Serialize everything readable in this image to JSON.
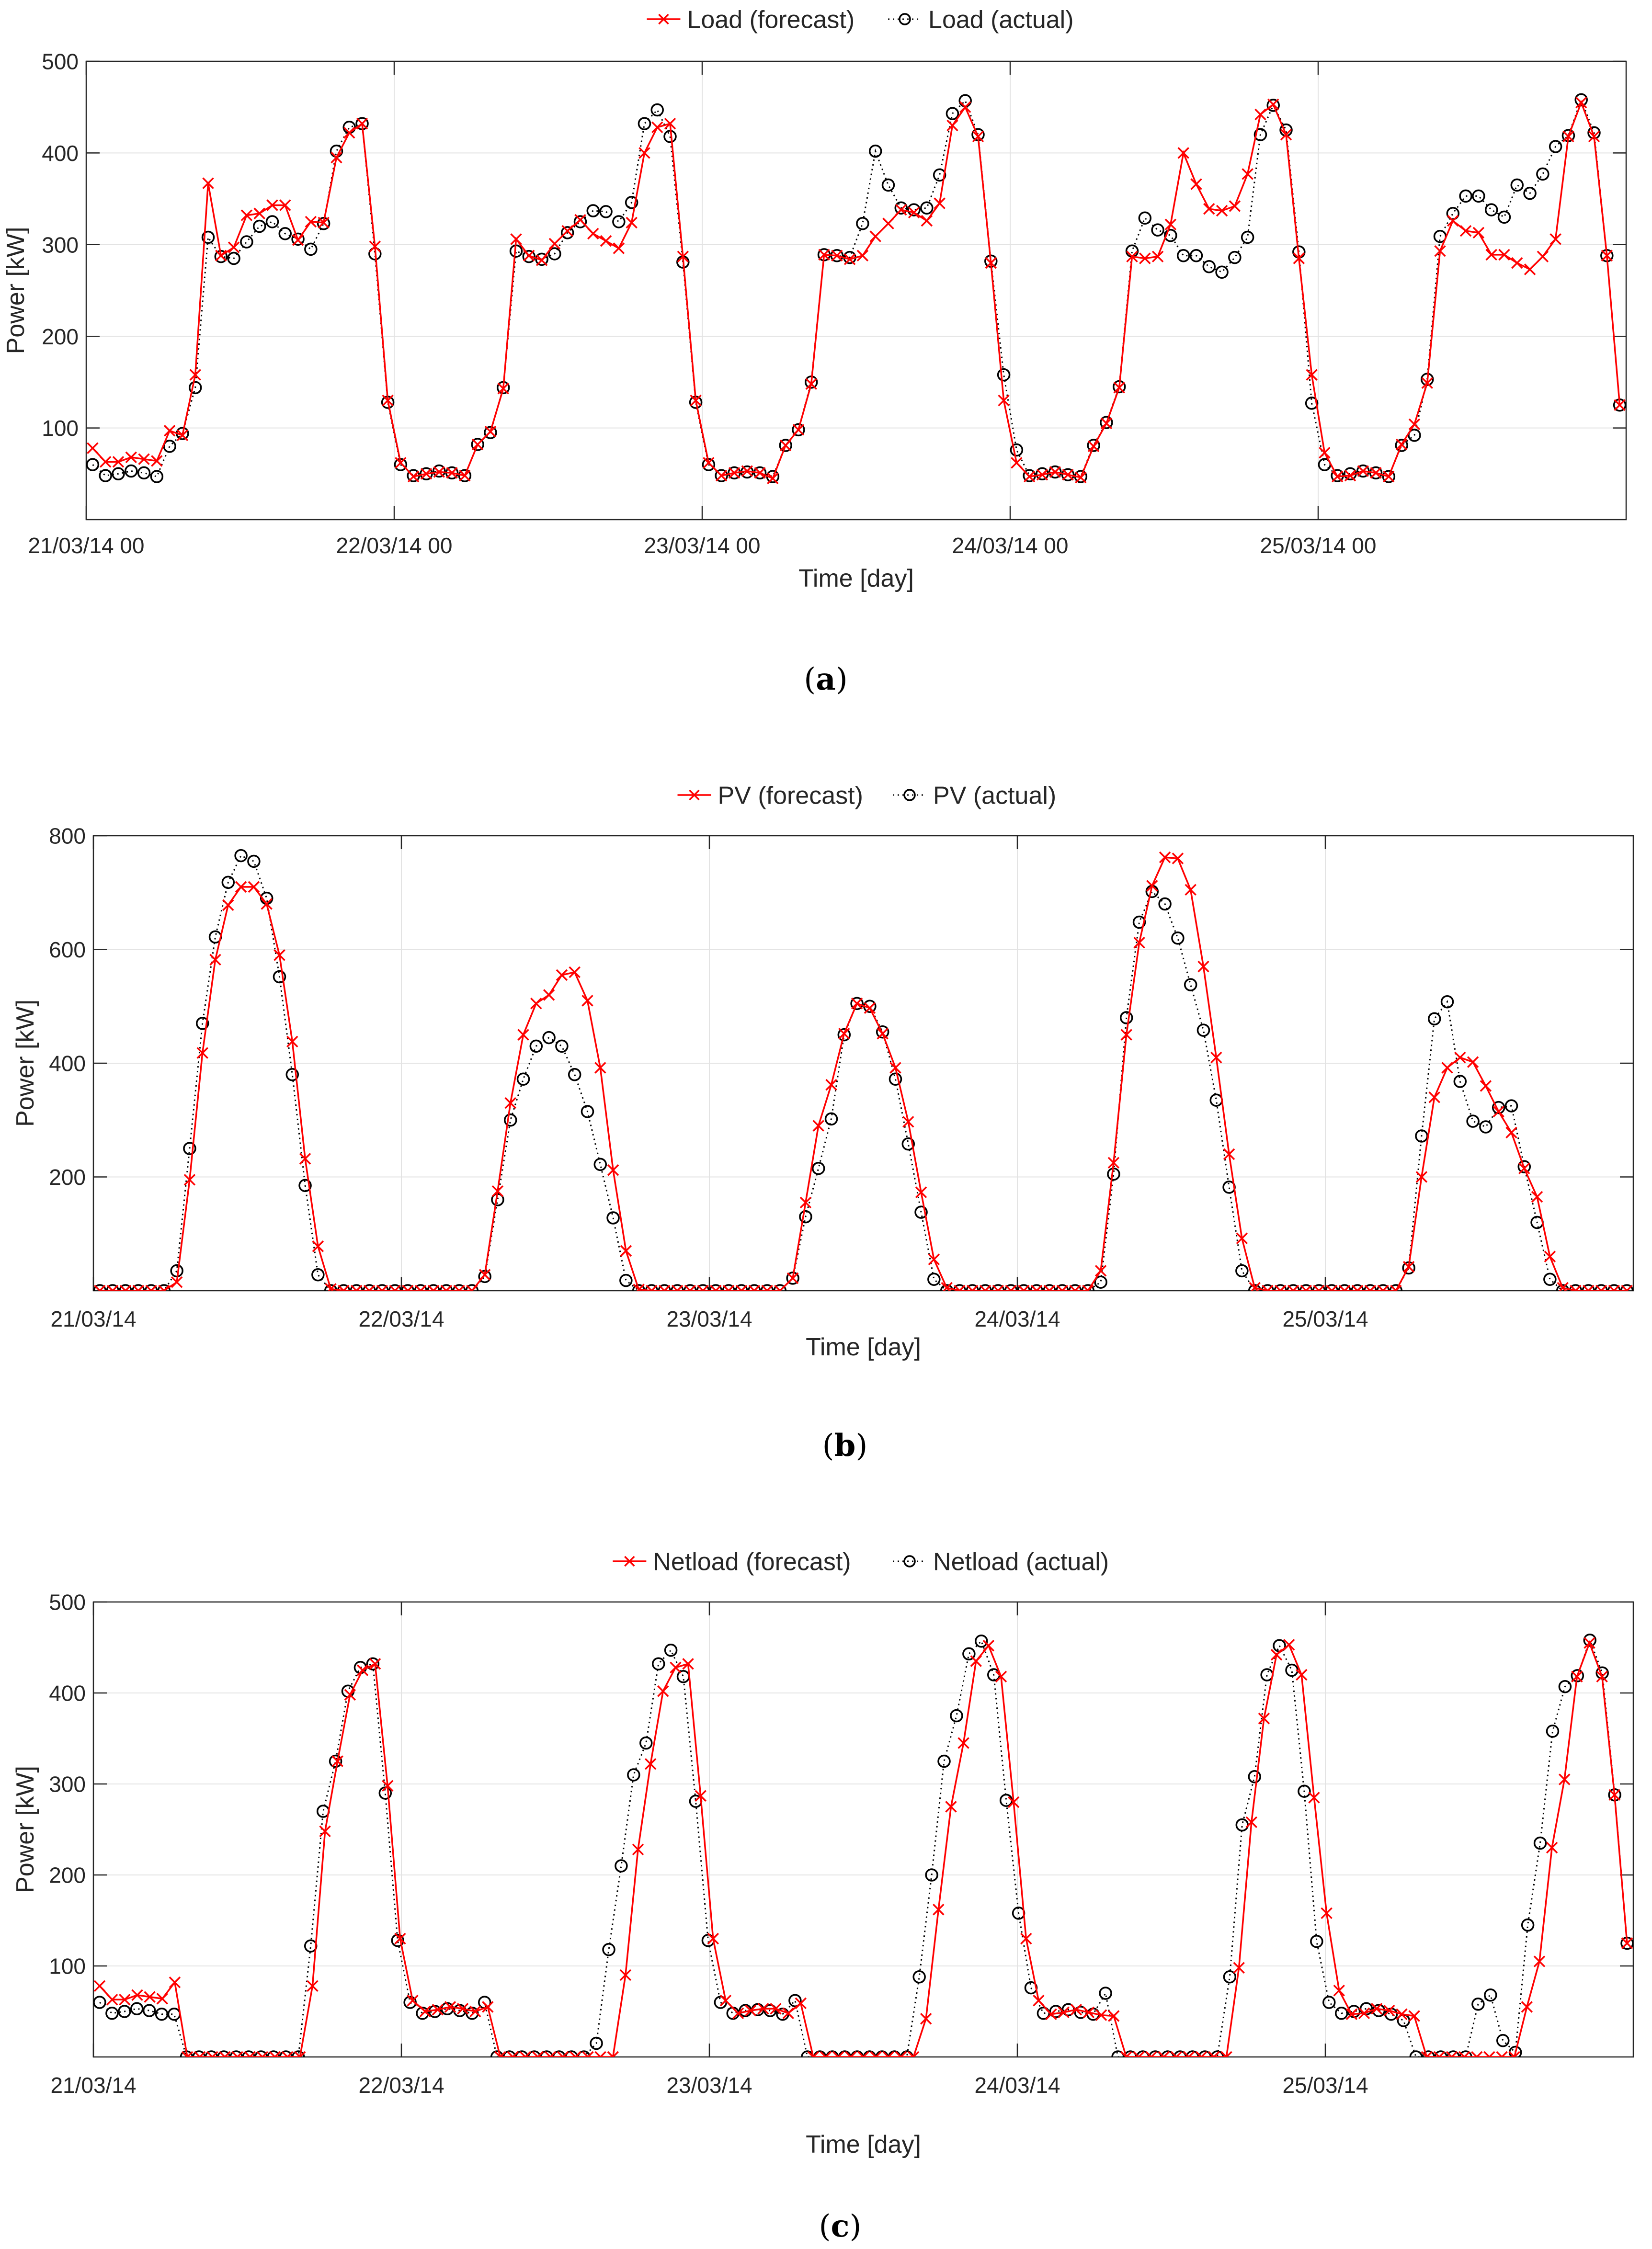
{
  "colors": {
    "forecast": "#ff0000",
    "actual": "#000000",
    "axis": "#262626",
    "grid": "#e3e3e3",
    "background": "#ffffff"
  },
  "chart_data": [
    {
      "id": "a",
      "type": "line",
      "caption_open": "(",
      "caption_letter": "a",
      "caption_close": ")",
      "xlabel": "Time [day]",
      "ylabel": "Power [kW]",
      "ylim": [
        0,
        500
      ],
      "yticks": [
        100,
        200,
        300,
        400,
        500
      ],
      "xlim": [
        0,
        120
      ],
      "xticks": [
        {
          "pos": 0,
          "label": "21/03/14 00"
        },
        {
          "pos": 24,
          "label": "22/03/14 00"
        },
        {
          "pos": 48,
          "label": "23/03/14 00"
        },
        {
          "pos": 72,
          "label": "24/03/14 00"
        },
        {
          "pos": 96,
          "label": "25/03/14 00"
        }
      ],
      "grid": true,
      "legend_position": "top-center",
      "series": [
        {
          "name": "Load (forecast)",
          "style": "solid",
          "marker": "x",
          "color": "#ff0000",
          "values": [
            78,
            63,
            63,
            68,
            66,
            64,
            97,
            92,
            158,
            367,
            288,
            297,
            332,
            334,
            343,
            343,
            305,
            325,
            324,
            395,
            422,
            432,
            298,
            130,
            62,
            47,
            50,
            52,
            51,
            48,
            82,
            96,
            143,
            306,
            288,
            283,
            301,
            315,
            327,
            312,
            304,
            296,
            324,
            400,
            428,
            432,
            287,
            130,
            62,
            48,
            51,
            53,
            51,
            45,
            81,
            98,
            148,
            289,
            288,
            284,
            288,
            309,
            323,
            338,
            335,
            326,
            345,
            430,
            450,
            418,
            280,
            130,
            62,
            47,
            49,
            52,
            49,
            46,
            80,
            105,
            144,
            287,
            285,
            287,
            322,
            400,
            366,
            339,
            337,
            342,
            377,
            442,
            453,
            420,
            285,
            158,
            73,
            47,
            48,
            53,
            51,
            47,
            82,
            104,
            149,
            293,
            326,
            315,
            313,
            289,
            289,
            280,
            273,
            287,
            306,
            418,
            455,
            418,
            288,
            125
          ]
        },
        {
          "name": "Load (actual)",
          "style": "dotted",
          "marker": "o",
          "color": "#000000",
          "values": [
            60,
            48,
            50,
            53,
            51,
            47,
            80,
            94,
            144,
            308,
            287,
            285,
            303,
            320,
            325,
            312,
            306,
            295,
            323,
            402,
            428,
            432,
            290,
            128,
            60,
            48,
            50,
            53,
            51,
            48,
            82,
            95,
            144,
            293,
            287,
            284,
            290,
            313,
            325,
            337,
            336,
            325,
            346,
            432,
            447,
            418,
            281,
            128,
            60,
            48,
            51,
            52,
            51,
            47,
            81,
            98,
            150,
            289,
            288,
            286,
            323,
            402,
            365,
            340,
            338,
            340,
            376,
            443,
            457,
            420,
            282,
            158,
            76,
            48,
            50,
            52,
            49,
            47,
            81,
            106,
            145,
            293,
            329,
            316,
            310,
            288,
            288,
            276,
            270,
            286,
            308,
            420,
            452,
            425,
            292,
            127,
            60,
            48,
            50,
            53,
            51,
            47,
            81,
            92,
            153,
            309,
            334,
            353,
            353,
            338,
            330,
            365,
            356,
            377,
            407,
            419,
            458,
            422,
            288,
            125
          ]
        }
      ]
    },
    {
      "id": "b",
      "type": "line",
      "caption_open": "(",
      "caption_letter": "b",
      "caption_close": ")",
      "xlabel": "Time [day]",
      "ylabel": "Power [kW]",
      "ylim": [
        0,
        800
      ],
      "yticks": [
        200,
        400,
        600,
        800
      ],
      "xlim": [
        0,
        120
      ],
      "xticks": [
        {
          "pos": 0,
          "label": "21/03/14"
        },
        {
          "pos": 24,
          "label": "22/03/14"
        },
        {
          "pos": 48,
          "label": "23/03/14"
        },
        {
          "pos": 72,
          "label": "24/03/14"
        },
        {
          "pos": 96,
          "label": "25/03/14"
        }
      ],
      "grid": true,
      "legend_position": "top-center",
      "series": [
        {
          "name": "PV (forecast)",
          "style": "solid",
          "marker": "x",
          "color": "#ff0000",
          "values": [
            0,
            0,
            0,
            0,
            0,
            0,
            15,
            195,
            418,
            582,
            678,
            710,
            710,
            680,
            590,
            438,
            232,
            78,
            3,
            0,
            0,
            0,
            0,
            0,
            0,
            0,
            0,
            0,
            0,
            0,
            28,
            175,
            330,
            450,
            505,
            520,
            555,
            560,
            510,
            392,
            212,
            70,
            2,
            0,
            0,
            0,
            0,
            0,
            0,
            0,
            0,
            0,
            0,
            0,
            22,
            155,
            290,
            362,
            452,
            505,
            497,
            452,
            392,
            297,
            173,
            55,
            5,
            0,
            0,
            0,
            0,
            0,
            0,
            0,
            0,
            0,
            0,
            0,
            35,
            225,
            450,
            612,
            712,
            762,
            760,
            705,
            570,
            410,
            240,
            92,
            5,
            0,
            0,
            0,
            0,
            0,
            0,
            0,
            0,
            0,
            0,
            0,
            42,
            200,
            340,
            392,
            410,
            402,
            360,
            315,
            278,
            215,
            165,
            60,
            5,
            0,
            0,
            0,
            0,
            0
          ]
        },
        {
          "name": "PV (actual)",
          "style": "dotted",
          "marker": "o",
          "color": "#000000",
          "values": [
            0,
            0,
            0,
            0,
            0,
            0,
            35,
            250,
            470,
            622,
            718,
            765,
            755,
            690,
            552,
            380,
            185,
            28,
            0,
            0,
            0,
            0,
            0,
            0,
            0,
            0,
            0,
            0,
            0,
            0,
            25,
            160,
            300,
            372,
            430,
            445,
            430,
            380,
            315,
            222,
            128,
            18,
            0,
            0,
            0,
            0,
            0,
            0,
            0,
            0,
            0,
            0,
            0,
            0,
            22,
            130,
            215,
            302,
            450,
            505,
            500,
            455,
            372,
            258,
            138,
            20,
            0,
            0,
            0,
            0,
            0,
            0,
            0,
            0,
            0,
            0,
            0,
            0,
            15,
            205,
            480,
            648,
            702,
            680,
            620,
            538,
            458,
            335,
            182,
            35,
            0,
            0,
            0,
            0,
            0,
            0,
            0,
            0,
            0,
            0,
            0,
            0,
            40,
            272,
            478,
            508,
            368,
            298,
            288,
            322,
            325,
            218,
            120,
            20,
            0,
            0,
            0,
            0,
            0,
            0
          ]
        }
      ]
    },
    {
      "id": "c",
      "type": "line",
      "caption_open": "(",
      "caption_letter": "c",
      "caption_close": ")",
      "xlabel": "Time [day]",
      "ylabel": "Power [kW]",
      "ylim": [
        0,
        500
      ],
      "yticks": [
        100,
        200,
        300,
        400,
        500
      ],
      "xlim": [
        0,
        120
      ],
      "xticks": [
        {
          "pos": 0,
          "label": "21/03/14"
        },
        {
          "pos": 24,
          "label": "22/03/14"
        },
        {
          "pos": 48,
          "label": "23/03/14"
        },
        {
          "pos": 72,
          "label": "24/03/14"
        },
        {
          "pos": 96,
          "label": "25/03/14"
        }
      ],
      "grid": true,
      "legend_position": "top-center",
      "series": [
        {
          "name": "Netload (forecast)",
          "style": "solid",
          "marker": "x",
          "color": "#ff0000",
          "values": [
            78,
            63,
            63,
            68,
            66,
            64,
            82,
            0,
            0,
            0,
            0,
            0,
            0,
            0,
            0,
            0,
            0,
            78,
            248,
            325,
            398,
            425,
            432,
            298,
            130,
            62,
            50,
            52,
            55,
            53,
            50,
            55,
            0,
            0,
            0,
            0,
            0,
            0,
            0,
            0,
            0,
            0,
            90,
            228,
            322,
            402,
            428,
            432,
            287,
            130,
            62,
            48,
            51,
            53,
            53,
            48,
            59,
            0,
            0,
            0,
            0,
            0,
            0,
            0,
            0,
            0,
            42,
            162,
            275,
            345,
            435,
            452,
            418,
            280,
            130,
            62,
            47,
            49,
            52,
            49,
            46,
            45,
            0,
            0,
            0,
            0,
            0,
            0,
            0,
            0,
            0,
            98,
            258,
            372,
            442,
            453,
            420,
            285,
            158,
            73,
            47,
            48,
            53,
            51,
            47,
            45,
            0,
            0,
            0,
            0,
            0,
            0,
            0,
            0,
            55,
            105,
            230,
            305,
            418,
            455,
            418,
            288,
            125
          ]
        },
        {
          "name": "Netload (actual)",
          "style": "dotted",
          "marker": "o",
          "color": "#000000",
          "values": [
            60,
            48,
            50,
            53,
            51,
            47,
            47,
            0,
            0,
            0,
            0,
            0,
            0,
            0,
            0,
            0,
            0,
            122,
            270,
            325,
            402,
            428,
            432,
            290,
            128,
            60,
            48,
            50,
            53,
            51,
            48,
            60,
            0,
            0,
            0,
            0,
            0,
            0,
            0,
            0,
            15,
            118,
            210,
            310,
            345,
            432,
            447,
            418,
            281,
            128,
            60,
            48,
            51,
            52,
            51,
            47,
            62,
            0,
            0,
            0,
            0,
            0,
            0,
            0,
            0,
            0,
            88,
            200,
            325,
            375,
            443,
            457,
            420,
            282,
            158,
            76,
            48,
            50,
            52,
            49,
            47,
            70,
            0,
            0,
            0,
            0,
            0,
            0,
            0,
            0,
            0,
            88,
            255,
            308,
            420,
            452,
            425,
            292,
            127,
            60,
            48,
            50,
            53,
            51,
            47,
            40,
            0,
            0,
            0,
            0,
            0,
            58,
            68,
            18,
            5,
            145,
            235,
            358,
            407,
            419,
            458,
            422,
            288,
            125
          ]
        }
      ]
    }
  ]
}
